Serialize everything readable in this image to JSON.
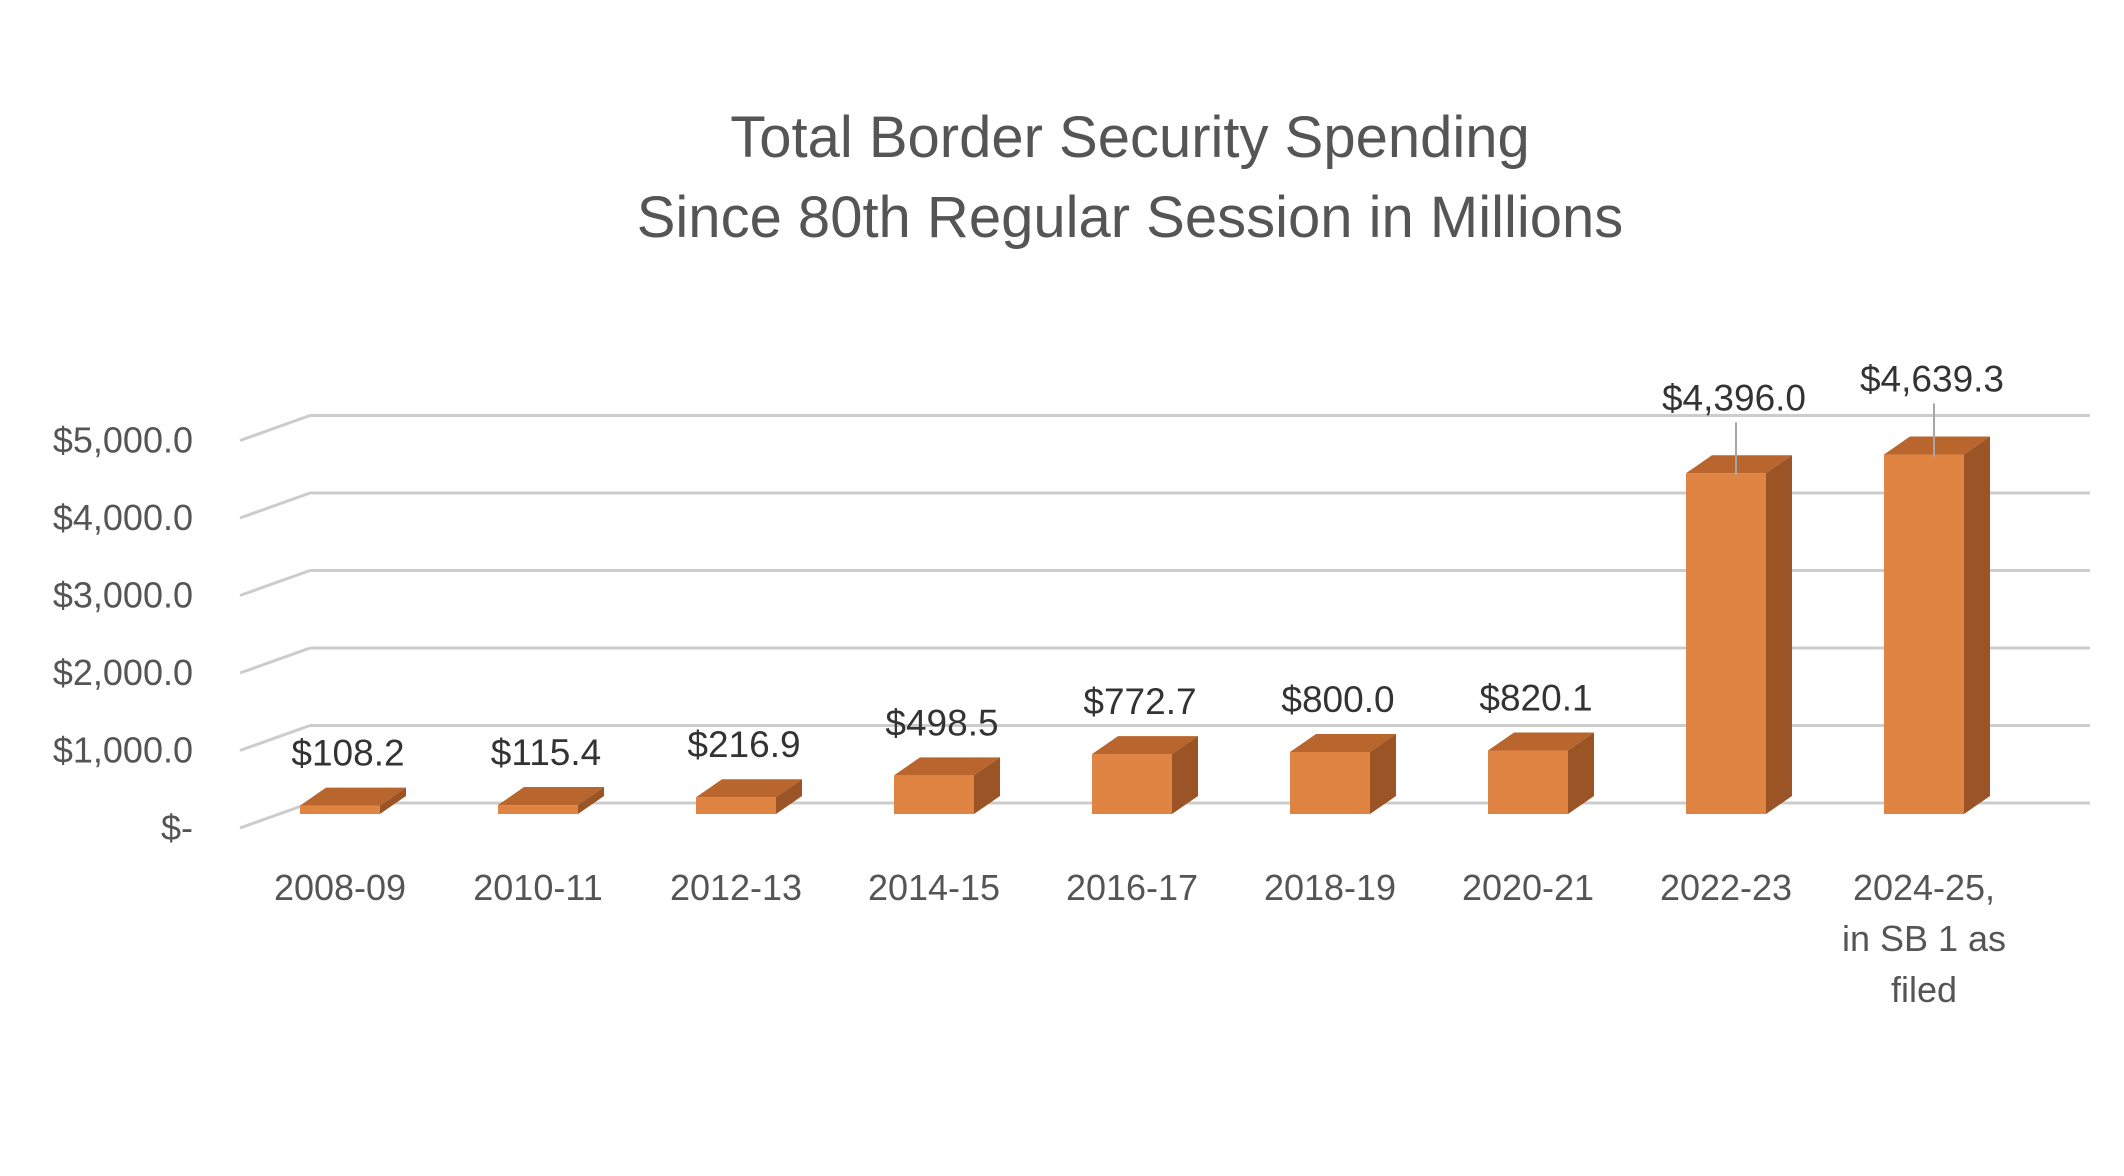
{
  "chart_data": {
    "type": "bar",
    "title_lines": [
      "Total Border Security Spending",
      "Since 80th Regular Session in Millions"
    ],
    "categories": [
      [
        "2008-09"
      ],
      [
        "2010-11"
      ],
      [
        "2012-13"
      ],
      [
        "2014-15"
      ],
      [
        "2016-17"
      ],
      [
        "2018-19"
      ],
      [
        "2020-21"
      ],
      [
        "2022-23"
      ],
      [
        "2024-25,",
        "in SB 1 as",
        "filed"
      ]
    ],
    "values": [
      108.2,
      115.4,
      216.9,
      498.5,
      772.7,
      800.0,
      820.1,
      4396.0,
      4639.3
    ],
    "data_labels": [
      "$108.2",
      "$115.4",
      "$216.9",
      "$498.5",
      "$772.7",
      "$800.0",
      "$820.1",
      "$4,396.0",
      "$4,639.3"
    ],
    "y_ticks": [
      0,
      1000,
      2000,
      3000,
      4000,
      5000
    ],
    "y_tick_labels": [
      "$-",
      "$1,000.0",
      "$2,000.0",
      "$3,000.0",
      "$4,000.0",
      "$5,000.0"
    ],
    "ylim": [
      0,
      5000
    ],
    "grid": true,
    "legend": "none",
    "three_d": true,
    "colors": {
      "bar_front": "#E08444",
      "bar_top": "#B8662D",
      "bar_side": "#9A5426",
      "gridline": "#CCCCCC",
      "text": "#555555",
      "label_text": "#333333"
    }
  }
}
